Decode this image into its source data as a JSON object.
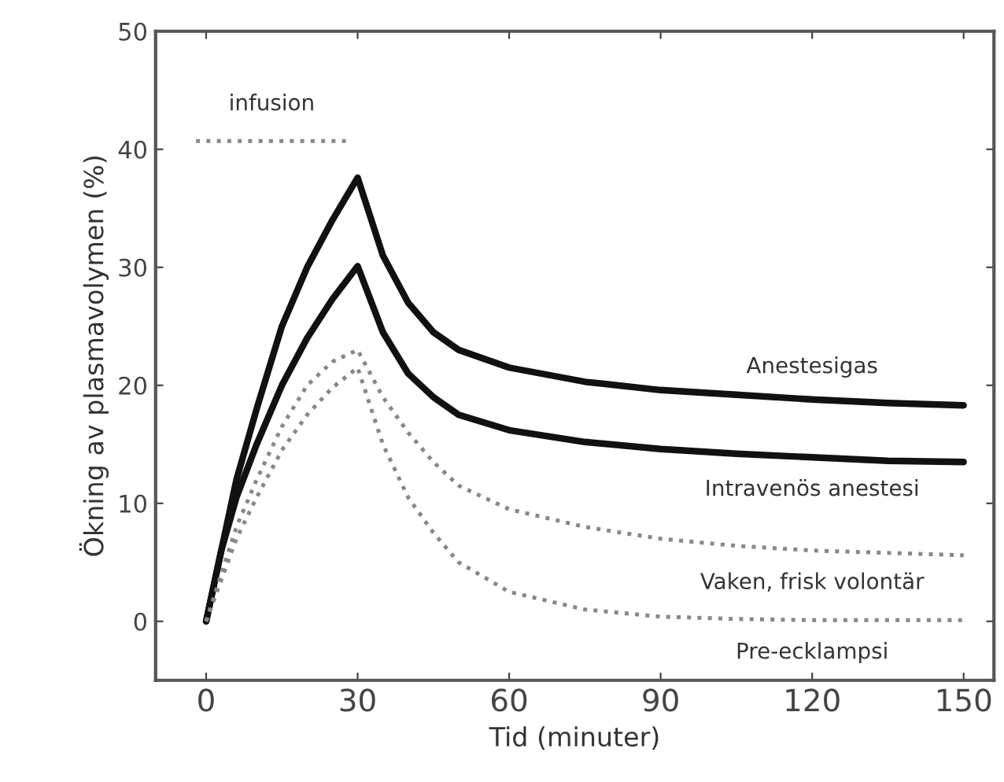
{
  "chart_data": {
    "type": "line",
    "xlabel": "Tid (minuter)",
    "ylabel": "Ökning av plasmavolymen (%)",
    "xlim": [
      -10,
      156
    ],
    "ylim": [
      -5,
      50
    ],
    "xticks": [
      0,
      30,
      60,
      90,
      120,
      150
    ],
    "yticks": [
      0,
      10,
      20,
      30,
      40,
      50
    ],
    "grid": false,
    "legend": false,
    "marker": "none",
    "series": [
      {
        "name": "infusion",
        "color": "#888888",
        "line_style": "dotted",
        "x": [
          -2,
          28
        ],
        "values": [
          40.7,
          40.7
        ]
      },
      {
        "name": "Anestesigas",
        "color": "#111111",
        "line_style": "solid",
        "x": [
          0,
          3,
          6,
          10,
          15,
          20,
          25,
          30,
          35,
          40,
          45,
          50,
          60,
          75,
          90,
          105,
          120,
          135,
          150
        ],
        "values": [
          0,
          6,
          12,
          18,
          25,
          30,
          34,
          37.6,
          31,
          27,
          24.5,
          23,
          21.5,
          20.3,
          19.6,
          19.2,
          18.8,
          18.5,
          18.3
        ]
      },
      {
        "name": "Intravenös anestesi",
        "color": "#111111",
        "line_style": "solid",
        "x": [
          0,
          3,
          6,
          10,
          15,
          20,
          25,
          30,
          35,
          40,
          45,
          50,
          60,
          75,
          90,
          105,
          120,
          135,
          150
        ],
        "values": [
          0,
          6,
          10.5,
          15,
          20,
          24,
          27.3,
          30.1,
          24.5,
          21,
          19,
          17.5,
          16.2,
          15.2,
          14.6,
          14.2,
          13.9,
          13.6,
          13.5
        ]
      },
      {
        "name": "Vaken, frisk volontär",
        "color": "#888888",
        "line_style": "dotted",
        "x": [
          0,
          3,
          6,
          10,
          15,
          20,
          25,
          30,
          35,
          40,
          45,
          50,
          60,
          75,
          90,
          105,
          120,
          135,
          150
        ],
        "values": [
          0,
          4,
          8,
          12,
          16.5,
          20,
          22,
          23,
          19,
          16,
          13.5,
          11.5,
          9.5,
          8,
          7,
          6.4,
          6,
          5.8,
          5.6
        ]
      },
      {
        "name": "Pre-ecklampsi",
        "color": "#888888",
        "line_style": "dotted",
        "x": [
          0,
          3,
          6,
          10,
          15,
          20,
          25,
          30,
          35,
          40,
          45,
          50,
          60,
          75,
          90,
          105,
          120,
          135,
          150
        ],
        "values": [
          0,
          3.5,
          7,
          10.5,
          14.5,
          17.5,
          19.8,
          21.5,
          15,
          10.5,
          7.5,
          5,
          2.5,
          1,
          0.4,
          0.2,
          0.1,
          0.1,
          0.1
        ]
      }
    ]
  }
}
